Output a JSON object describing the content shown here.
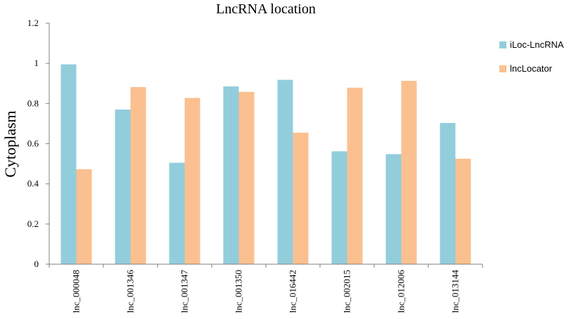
{
  "chart_data": {
    "type": "bar",
    "title": "LncRNA location",
    "xlabel": "",
    "ylabel": "Cytoplasm",
    "ylim": [
      0,
      1.2
    ],
    "yticks": [
      "0",
      "0.2",
      "0.4",
      "0.6",
      "0.8",
      "1",
      "1.2"
    ],
    "categories": [
      "lnc_000048",
      "lnc_001346",
      "lnc_001347",
      "lnc_001350",
      "lnc_016442",
      "lnc_002015",
      "lnc_012006",
      "lnc_013144"
    ],
    "series": [
      {
        "name": "iLoc-LncRNA",
        "color": "#92CDDC",
        "values": [
          0.995,
          0.77,
          0.505,
          0.885,
          0.918,
          0.562,
          0.548,
          0.703
        ]
      },
      {
        "name": "lncLocator",
        "color": "#FAC090",
        "values": [
          0.473,
          0.882,
          0.828,
          0.858,
          0.655,
          0.879,
          0.913,
          0.525
        ]
      }
    ],
    "grid": false,
    "legend": "right"
  }
}
